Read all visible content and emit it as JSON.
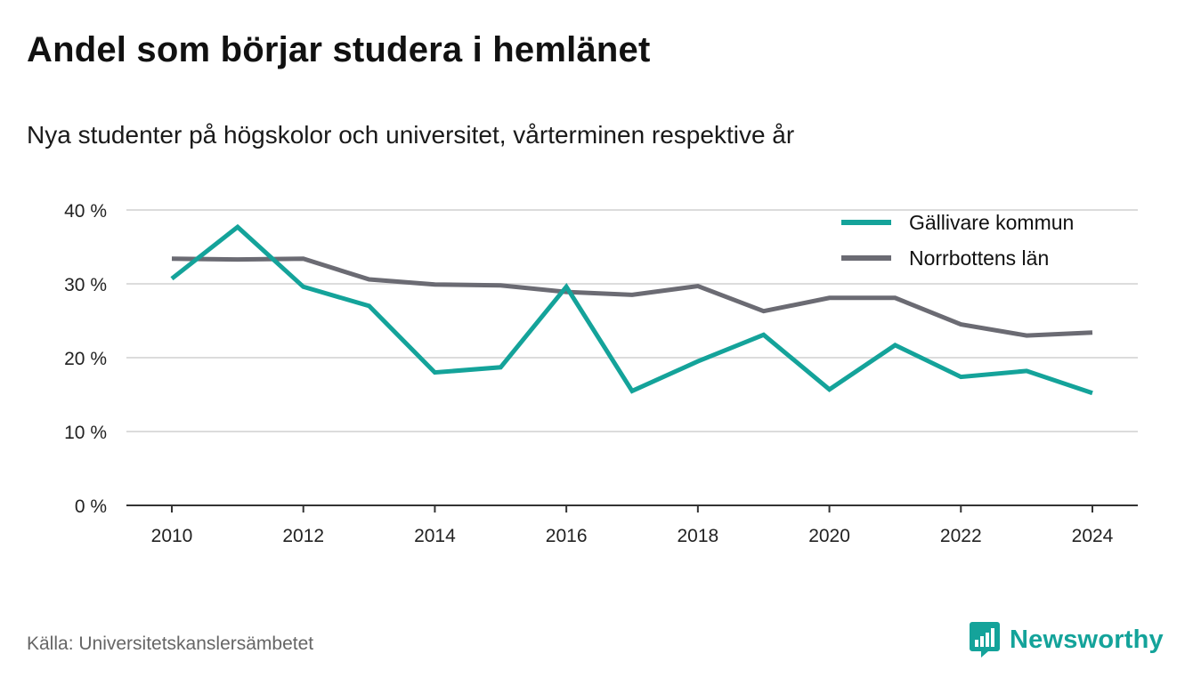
{
  "title": "Andel som börjar studera i hemlänet",
  "subtitle": "Nya studenter på högskolor och universitet, vårterminen respektive år",
  "source": "Källa: Universitetskanslersämbetet",
  "brand": {
    "name": "Newsworthy",
    "icon": "newsworthy-logo-icon",
    "color": "#14a39a"
  },
  "colors": {
    "gallivare": "#14a39a",
    "norrbotten": "#6b6b73",
    "grid": "#dcdcdc",
    "axis": "#333333"
  },
  "chart_data": {
    "type": "line",
    "x": [
      2010,
      2011,
      2012,
      2013,
      2014,
      2015,
      2016,
      2017,
      2018,
      2019,
      2020,
      2021,
      2022,
      2023,
      2024
    ],
    "series": [
      {
        "name": "Gällivare kommun",
        "color": "#14a39a",
        "values": [
          30.7,
          37.7,
          29.6,
          27.0,
          18.0,
          18.7,
          29.6,
          15.5,
          19.5,
          23.1,
          15.7,
          21.7,
          17.4,
          18.2,
          15.2
        ]
      },
      {
        "name": "Norrbottens län",
        "color": "#6b6b73",
        "values": [
          33.4,
          33.3,
          33.4,
          30.6,
          29.9,
          29.8,
          28.9,
          28.5,
          29.7,
          26.3,
          28.1,
          28.1,
          24.5,
          23.0,
          23.4
        ]
      }
    ],
    "x_ticks": [
      "2010",
      "2012",
      "2014",
      "2016",
      "2018",
      "2020",
      "2022",
      "2024"
    ],
    "y_ticks": [
      "0 %",
      "10 %",
      "20 %",
      "30 %",
      "40 %"
    ],
    "ylim": [
      0,
      40
    ],
    "xlim": [
      2010,
      2024
    ],
    "grid": true,
    "legend_position": "top-right"
  }
}
